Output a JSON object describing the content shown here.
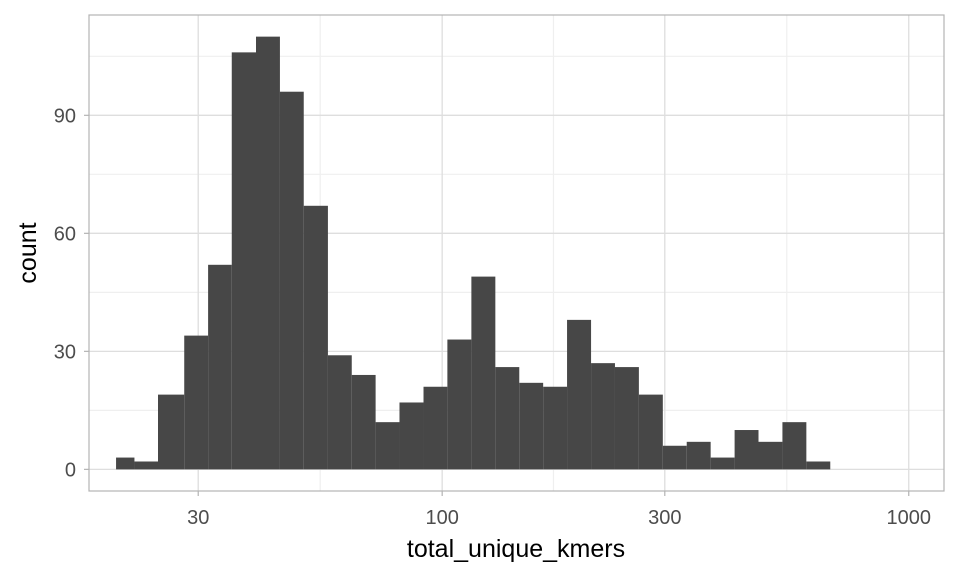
{
  "chart_data": {
    "type": "bar",
    "subtype": "histogram",
    "x_scale": "log10",
    "xlabel": "total_unique_kmers",
    "ylabel": "count",
    "x_ticks": [
      30,
      100,
      300,
      1000
    ],
    "x_tick_labels": [
      "30",
      "100",
      "300",
      "1000"
    ],
    "y_ticks": [
      0,
      30,
      60,
      90
    ],
    "y_tick_labels": [
      "0",
      "30",
      "60",
      "90"
    ],
    "xlim": [
      17.5,
      1190
    ],
    "ylim": [
      -5.5,
      115.5
    ],
    "grid": true,
    "bins": [
      {
        "x0": 20.0,
        "x1": 21.9,
        "count": 3
      },
      {
        "x0": 21.9,
        "x1": 24.6,
        "count": 2
      },
      {
        "x0": 24.6,
        "x1": 28.0,
        "count": 19
      },
      {
        "x0": 28.0,
        "x1": 31.5,
        "count": 34
      },
      {
        "x0": 31.5,
        "x1": 35.4,
        "count": 52
      },
      {
        "x0": 35.4,
        "x1": 39.9,
        "count": 106
      },
      {
        "x0": 39.9,
        "x1": 44.9,
        "count": 110
      },
      {
        "x0": 44.9,
        "x1": 50.5,
        "count": 96
      },
      {
        "x0": 50.5,
        "x1": 56.9,
        "count": 67
      },
      {
        "x0": 56.9,
        "x1": 64.0,
        "count": 29
      },
      {
        "x0": 64.0,
        "x1": 72.0,
        "count": 24
      },
      {
        "x0": 72.0,
        "x1": 81.0,
        "count": 12
      },
      {
        "x0": 81.0,
        "x1": 91.2,
        "count": 17
      },
      {
        "x0": 91.2,
        "x1": 102.6,
        "count": 21
      },
      {
        "x0": 102.6,
        "x1": 115.5,
        "count": 33
      },
      {
        "x0": 115.5,
        "x1": 130.0,
        "count": 49
      },
      {
        "x0": 130.0,
        "x1": 146.3,
        "count": 26
      },
      {
        "x0": 146.3,
        "x1": 164.6,
        "count": 22
      },
      {
        "x0": 164.6,
        "x1": 185.2,
        "count": 21
      },
      {
        "x0": 185.2,
        "x1": 208.5,
        "count": 38
      },
      {
        "x0": 208.5,
        "x1": 234.6,
        "count": 27
      },
      {
        "x0": 234.6,
        "x1": 264.0,
        "count": 26
      },
      {
        "x0": 264.0,
        "x1": 297.1,
        "count": 19
      },
      {
        "x0": 297.1,
        "x1": 334.3,
        "count": 6
      },
      {
        "x0": 334.3,
        "x1": 376.2,
        "count": 7
      },
      {
        "x0": 376.2,
        "x1": 423.4,
        "count": 3
      },
      {
        "x0": 423.4,
        "x1": 476.4,
        "count": 10
      },
      {
        "x0": 476.4,
        "x1": 536.1,
        "count": 7
      },
      {
        "x0": 536.1,
        "x1": 603.3,
        "count": 12
      },
      {
        "x0": 603.3,
        "x1": 678.9,
        "count": 2
      }
    ],
    "colors": {
      "bar": "#474747",
      "panel_border": "#b3b3b3",
      "grid_major": "#dedede",
      "grid_minor": "#efefef",
      "tick_text": "#4d4d4d",
      "axis_title": "#000000"
    }
  }
}
